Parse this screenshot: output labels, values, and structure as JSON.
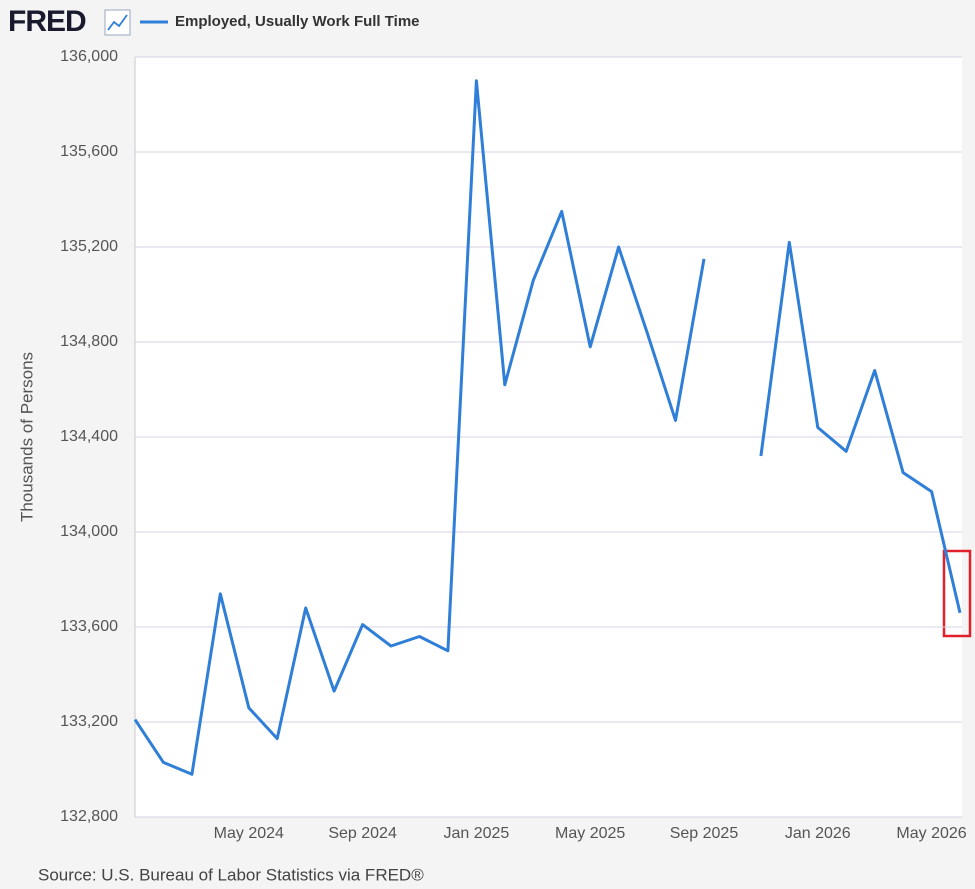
{
  "chart_data": {
    "type": "line",
    "logo": "FRED",
    "source": "Source: U.S. Bureau of Labor Statistics via FRED®",
    "y_label": "Thousands of Persons",
    "categories": [
      null,
      null,
      null,
      null,
      "May 2024",
      null,
      null,
      null,
      "Sep 2024",
      null,
      null,
      null,
      "Jan 2025",
      null,
      null,
      null,
      "May 2025",
      null,
      null,
      null,
      "Sep 2025",
      null,
      null,
      null,
      "Jan 2026",
      null,
      null,
      null,
      "May 2026",
      null
    ],
    "series": [
      {
        "name": "Employed, Usually Work Full Time",
        "color": "#2f7ed8",
        "values": [
          133210,
          133030,
          132980,
          133740,
          133260,
          133130,
          133680,
          133330,
          133610,
          133520,
          133560,
          133500,
          135900,
          134620,
          135060,
          135350,
          134780,
          135200,
          134840,
          134470,
          135150,
          null,
          134320,
          135220,
          134440,
          134340,
          134680,
          134250,
          134170,
          133660
        ]
      }
    ],
    "ylim": [
      132800,
      136000
    ],
    "yticks": [
      {
        "value": 132800,
        "label": "132,800"
      },
      {
        "value": 133200,
        "label": "133,200"
      },
      {
        "value": 133600,
        "label": "133,600"
      },
      {
        "value": 134000,
        "label": "134,000"
      },
      {
        "value": 134400,
        "label": "134,400"
      },
      {
        "value": 134800,
        "label": "134,800"
      },
      {
        "value": 135200,
        "label": "135,200"
      },
      {
        "value": 135600,
        "label": "135,600"
      },
      {
        "value": 136000,
        "label": "136,000"
      }
    ],
    "grid": true
  }
}
